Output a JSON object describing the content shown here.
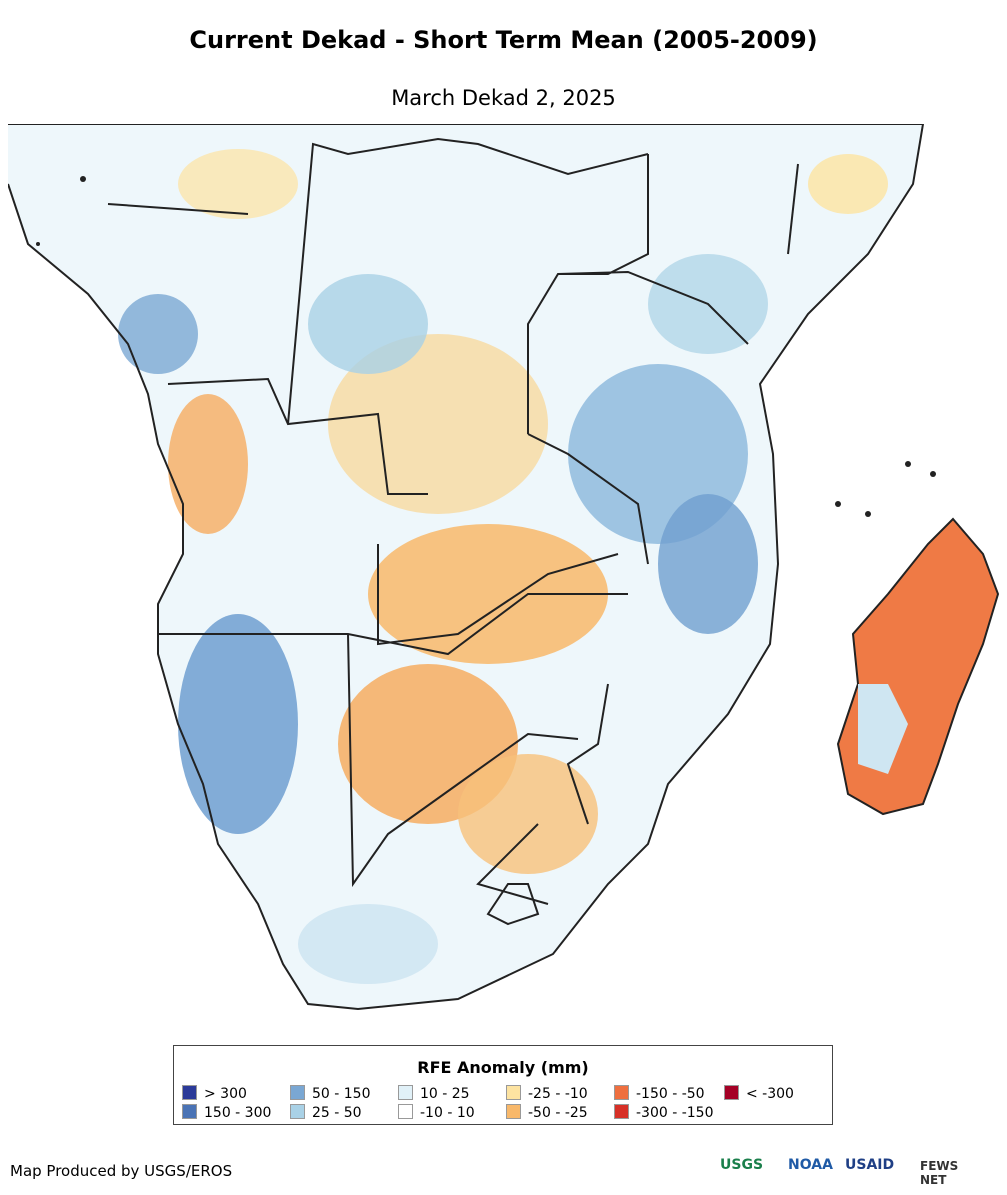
{
  "header": {
    "title": "Current Dekad - Short Term Mean (2005-2009)",
    "subtitle": "March Dekad 2, 2025"
  },
  "legend": {
    "title": "RFE Anomaly (mm)",
    "items": [
      {
        "label": "> 300",
        "color": "#2b3a99"
      },
      {
        "label": "150 - 300",
        "color": "#4a73b5"
      },
      {
        "label": "50 - 150",
        "color": "#7aa7d3"
      },
      {
        "label": "25 - 50",
        "color": "#a9d1e6"
      },
      {
        "label": "10 - 25",
        "color": "#e1f1f8"
      },
      {
        "label": "-10 - 10",
        "color": "#ffffff"
      },
      {
        "label": "-25 - -10",
        "color": "#fde3a1"
      },
      {
        "label": "-50 - -25",
        "color": "#f8b86a"
      },
      {
        "label": "-150 - -50",
        "color": "#ef6f3f"
      },
      {
        "label": "-300 - -150",
        "color": "#d73027"
      },
      {
        "label": "< -300",
        "color": "#a50026"
      }
    ]
  },
  "footer": {
    "credit": "Map Produced by USGS/EROS",
    "logos": [
      "USGS",
      "NOAA",
      "USAID",
      "FEWS NET"
    ]
  }
}
